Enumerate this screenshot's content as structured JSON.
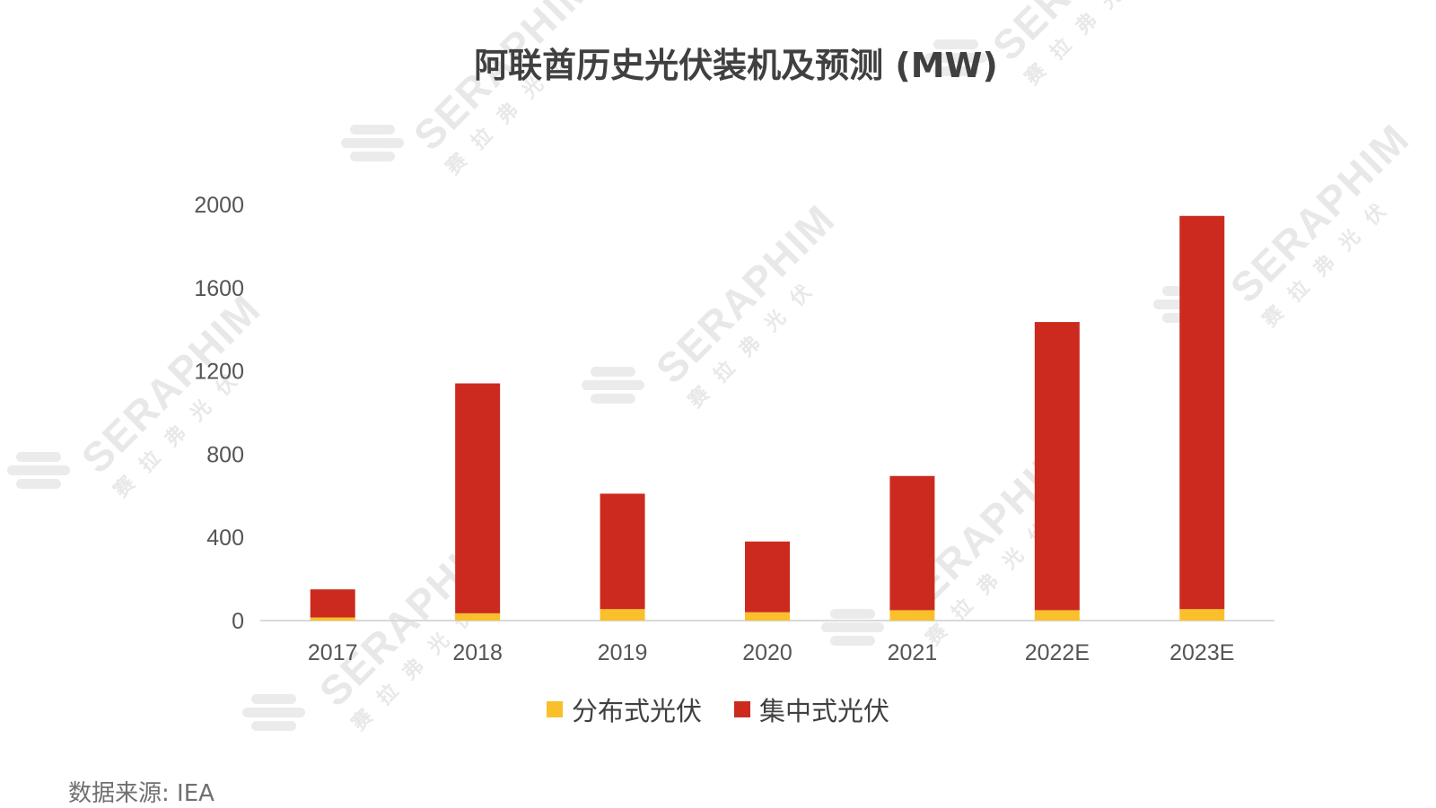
{
  "chart_data": {
    "type": "bar",
    "stacked": true,
    "title": "阿联酋历史光伏装机及预测 (MW)",
    "categories": [
      "2017",
      "2018",
      "2019",
      "2020",
      "2021",
      "2022E",
      "2023E"
    ],
    "series": [
      {
        "name": "分布式光伏",
        "color": "#F9C02B",
        "values": [
          15,
          35,
          55,
          40,
          50,
          50,
          55
        ]
      },
      {
        "name": "集中式光伏",
        "color": "#CC2A1F",
        "values": [
          135,
          1105,
          555,
          340,
          645,
          1385,
          1890
        ]
      }
    ],
    "yticks": [
      "0",
      "400",
      "800",
      "1200",
      "1600",
      "2000"
    ],
    "ylim": [
      0,
      2000
    ],
    "grid": false,
    "legend_position": "bottom"
  },
  "source_note": "数据来源: IEA",
  "watermark": {
    "brand": "SERAPHIM",
    "tagline": "赛 拉 弗 光 伏"
  }
}
